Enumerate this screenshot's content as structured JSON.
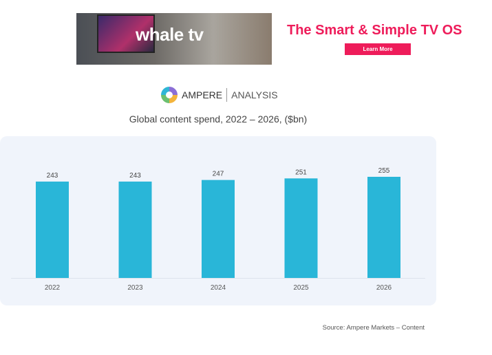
{
  "ad": {
    "brand": "whale tv",
    "headline": "The Smart & Simple TV OS",
    "button_label": "Learn More",
    "accent_color": "#ee1c5a"
  },
  "logo": {
    "name": "AMPERE",
    "sub": "ANALYSIS"
  },
  "chart_data": {
    "type": "bar",
    "title": "Global content spend, 2022 – 2026, ($bn)",
    "categories": [
      "2022",
      "2023",
      "2024",
      "2025",
      "2026"
    ],
    "values": [
      243,
      243,
      247,
      251,
      255
    ],
    "data_labels": [
      "243",
      "243",
      "247",
      "251",
      "255"
    ],
    "ylim": [
      0,
      255
    ],
    "grid": false,
    "bar_color": "#29b6d8",
    "source": "Source: Ampere Markets – Content"
  }
}
